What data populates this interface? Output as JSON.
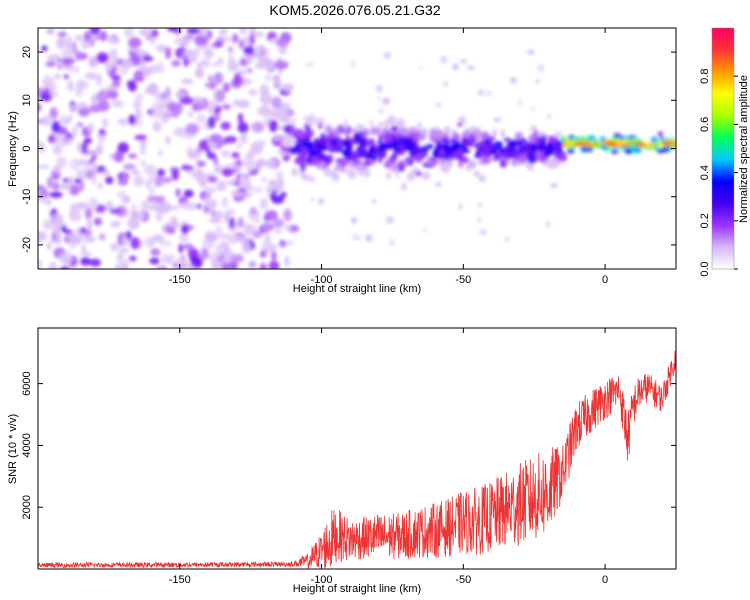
{
  "title": "KOM5.2026.076.05.21.G32",
  "colors": {
    "snr_line": "#ee3333",
    "axis": "#000000"
  },
  "chart_data": [
    {
      "type": "heatmap",
      "name": "spectrogram",
      "xlabel": "Height of straight line (km)",
      "ylabel": "Frequency (Hz)",
      "xlim": [
        -200,
        25
      ],
      "ylim": [
        -25,
        25
      ],
      "x_ticks": [
        -150,
        -100,
        -50,
        0
      ],
      "y_ticks": [
        -20,
        -10,
        0,
        10,
        20
      ],
      "x_tick_labels": [
        "-150",
        "-100",
        "-50",
        "0"
      ],
      "y_tick_labels": [
        "-20",
        "-10",
        "0",
        "10",
        "20"
      ],
      "colorbar": {
        "label": "Normalized spectral amplitude",
        "range": [
          0,
          1
        ],
        "ticks": [
          0.0,
          0.2,
          0.4,
          0.6,
          0.8
        ],
        "tick_labels": [
          "0.0",
          "0.2",
          "0.4",
          "0.6",
          "0.8"
        ],
        "colormap": [
          "#ffffff",
          "#d6b8f5",
          "#9933ff",
          "#4400ee",
          "#0000ff",
          "#00ccff",
          "#00ff55",
          "#aaff00",
          "#ffff00",
          "#ff9900",
          "#ff3333",
          "#ff0066"
        ]
      },
      "regions": [
        {
          "x_range": [
            -200,
            -110
          ],
          "freq_range": [
            -25,
            25
          ],
          "amplitude": 0.1,
          "description_level": "noise"
        },
        {
          "x_range": [
            -110,
            -15
          ],
          "freq_center": 0,
          "freq_halfwidth": [
            5,
            3
          ],
          "amplitude": 0.25
        },
        {
          "x_range": [
            -15,
            25
          ],
          "freq_center": 1,
          "freq_halfwidth": 1.5,
          "amplitude": 0.9
        }
      ]
    },
    {
      "type": "line",
      "name": "snr",
      "xlabel": "Height of straight line (km)",
      "ylabel": "SNR (10 * v/v)",
      "xlim": [
        -200,
        25
      ],
      "ylim": [
        0,
        7800
      ],
      "x_ticks": [
        -150,
        -100,
        -50,
        0
      ],
      "y_ticks": [
        2000,
        4000,
        6000
      ],
      "x_tick_labels": [
        "-150",
        "-100",
        "-50",
        "0"
      ],
      "y_tick_labels": [
        "2000",
        "4000",
        "6000"
      ],
      "series": [
        {
          "name": "SNR",
          "x": [
            -200,
            -180,
            -160,
            -140,
            -120,
            -110,
            -105,
            -100,
            -97,
            -95,
            -90,
            -85,
            -80,
            -75,
            -70,
            -65,
            -60,
            -55,
            -50,
            -45,
            -40,
            -35,
            -30,
            -25,
            -20,
            -15,
            -10,
            -5,
            0,
            5,
            8,
            10,
            12,
            15,
            20,
            25
          ],
          "values": [
            120,
            130,
            130,
            140,
            150,
            160,
            250,
            600,
            900,
            1100,
            950,
            1000,
            1050,
            1050,
            1100,
            1200,
            1250,
            1350,
            1500,
            1550,
            1700,
            1900,
            2100,
            2300,
            2500,
            3100,
            4600,
            5100,
            5500,
            5800,
            4200,
            5300,
            5700,
            5900,
            5500,
            6900
          ],
          "noise": [
            80,
            80,
            80,
            80,
            80,
            80,
            250,
            600,
            1000,
            900,
            700,
            700,
            750,
            750,
            800,
            850,
            900,
            950,
            1050,
            1100,
            1150,
            1250,
            1350,
            1400,
            1450,
            900,
            800,
            700,
            650,
            600,
            900,
            700,
            550,
            500,
            450,
            400
          ]
        }
      ]
    }
  ]
}
